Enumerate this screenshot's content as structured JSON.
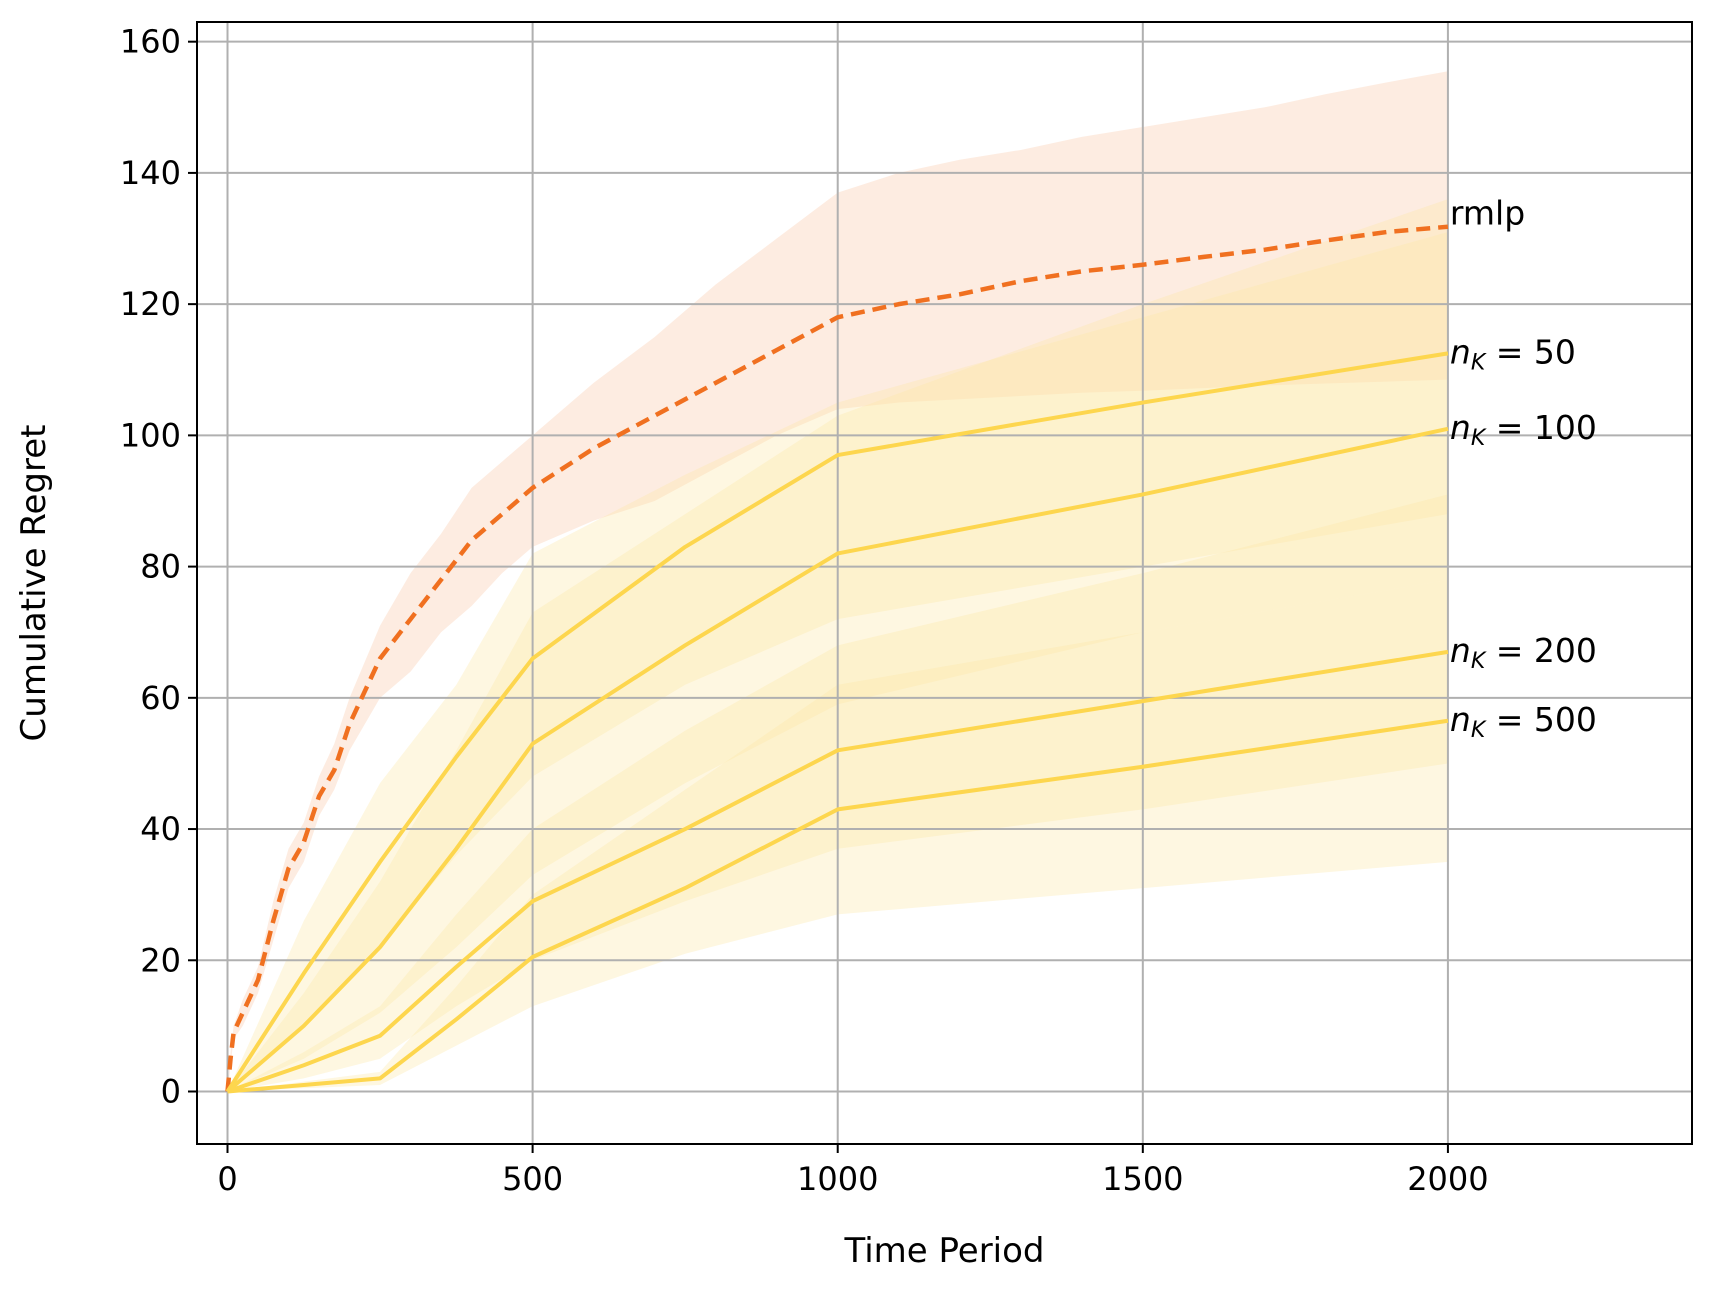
{
  "chart_data": {
    "type": "line",
    "title": "",
    "xlabel": "Time Period",
    "ylabel": "Cumulative Regret",
    "xlim": [
      -50,
      2400
    ],
    "ylim": [
      -8,
      163
    ],
    "xticks": [
      0,
      500,
      1000,
      1500,
      2000
    ],
    "yticks": [
      0,
      20,
      40,
      60,
      80,
      100,
      120,
      140,
      160
    ],
    "grid": true,
    "legend": "none (labels at line ends)",
    "colors": {
      "rmlp": "#f07020",
      "rmlp_band": "#fbd5bd",
      "nk": "#fdd64e",
      "nk_band": "#fde9a8"
    },
    "series": [
      {
        "name": "rmlp",
        "label": "rmlp",
        "style": "dashed",
        "x": [
          0,
          5,
          10,
          25,
          50,
          75,
          100,
          125,
          150,
          175,
          200,
          250,
          300,
          350,
          400,
          450,
          500,
          600,
          700,
          800,
          900,
          1000,
          1100,
          1200,
          1300,
          1400,
          1500,
          1600,
          1700,
          1800,
          1900,
          2000
        ],
        "y": [
          0,
          5,
          9,
          12,
          17,
          26,
          34,
          38,
          45,
          49,
          56,
          66,
          72,
          78,
          84,
          88,
          92,
          98,
          103,
          108,
          113,
          118,
          120,
          121.5,
          123.5,
          125,
          126,
          127.2,
          128.3,
          129.7,
          131,
          131.8
        ],
        "lower": [
          0,
          4,
          8,
          10,
          15,
          23,
          31,
          35,
          42,
          46,
          52,
          60,
          64,
          70,
          74,
          79,
          83,
          87,
          90,
          95,
          100,
          104,
          105,
          105.5,
          106,
          106.5,
          106.8,
          107.2,
          107.6,
          107.9,
          108.2,
          108.5
        ],
        "upper": [
          0,
          6,
          10,
          14,
          19,
          29,
          37,
          41,
          48,
          53,
          60,
          71,
          79,
          85,
          92,
          96,
          100,
          108,
          115,
          123,
          130,
          137,
          140,
          142,
          143.5,
          145.5,
          147,
          148.5,
          150,
          152,
          153.8,
          155.5
        ]
      },
      {
        "name": "n_K = 50",
        "label_main": "n",
        "label_sub": "K",
        "label_value": "= 50",
        "x": [
          0,
          125,
          250,
          375,
          500,
          750,
          1000,
          1500,
          2000
        ],
        "y": [
          0,
          18,
          35,
          51,
          66,
          83,
          97,
          105,
          112.5
        ],
        "lower": [
          0,
          10,
          22,
          36,
          48,
          62,
          72,
          80,
          88
        ],
        "upper": [
          0,
          26,
          47,
          62,
          82,
          94,
          105,
          118,
          131
        ]
      },
      {
        "name": "n_K = 100",
        "label_main": "n",
        "label_sub": "K",
        "label_value": "= 100",
        "x": [
          0,
          125,
          250,
          375,
          500,
          750,
          1000,
          1500,
          2000
        ],
        "y": [
          0,
          10,
          22,
          37,
          53,
          68,
          82,
          91,
          101
        ],
        "lower": [
          0,
          5,
          12,
          22,
          33,
          47,
          59,
          70,
          78
        ],
        "upper": [
          0,
          15,
          32,
          52,
          73,
          88,
          103,
          120,
          136
        ]
      },
      {
        "name": "n_K = 200",
        "label_main": "n",
        "label_sub": "K",
        "label_value": "= 200",
        "x": [
          0,
          125,
          250,
          375,
          500,
          750,
          1000,
          1500,
          2000
        ],
        "y": [
          0,
          4,
          8.5,
          19,
          29,
          40,
          52,
          59.5,
          67
        ],
        "lower": [
          0,
          2,
          5,
          13,
          20,
          29,
          37,
          43,
          50
        ],
        "upper": [
          0,
          6,
          13,
          27,
          40,
          55,
          68,
          79,
          91
        ]
      },
      {
        "name": "n_K = 500",
        "label_main": "n",
        "label_sub": "K",
        "label_value": "= 500",
        "x": [
          0,
          125,
          250,
          375,
          500,
          750,
          1000,
          1500,
          2000
        ],
        "y": [
          0,
          1,
          2,
          11,
          20.5,
          31,
          43,
          49.5,
          56.5
        ],
        "lower": [
          0,
          0.5,
          1,
          7,
          13,
          21,
          27,
          31,
          35
        ],
        "upper": [
          0,
          1.5,
          3,
          16,
          30,
          46,
          62,
          70,
          78
        ]
      }
    ]
  }
}
